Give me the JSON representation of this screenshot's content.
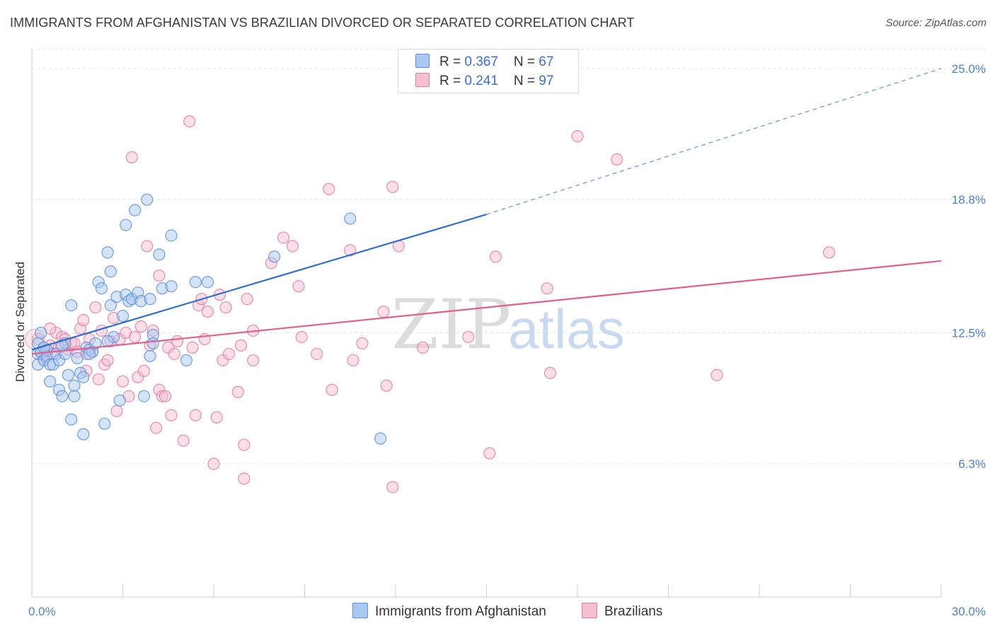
{
  "header": {
    "title": "IMMIGRANTS FROM AFGHANISTAN VS BRAZILIAN DIVORCED OR SEPARATED CORRELATION CHART",
    "source": "Source: ZipAtlas.com"
  },
  "legend": {
    "rows": [
      {
        "r_label": "R = ",
        "r_value": "0.367",
        "n_label": "N = ",
        "n_value": "67"
      },
      {
        "r_label": "R = ",
        "r_value": "0.241",
        "n_label": "N = ",
        "n_value": "97"
      }
    ]
  },
  "watermark": {
    "zip": "ZIP",
    "atlas": "atlas"
  },
  "colors": {
    "blue_fill": "#a9c8f2",
    "blue_stroke": "#5b8fd8",
    "blue_line": "#2f6fcc",
    "pink_fill": "#f6bfd2",
    "pink_stroke": "#e07aa0",
    "pink_line": "#e0608e",
    "axis_text": "#4a7fd4",
    "grid": "#e3e3e3"
  },
  "chart_data": {
    "type": "scatter",
    "title": "IMMIGRANTS FROM AFGHANISTAN VS BRAZILIAN DIVORCED OR SEPARATED CORRELATION CHART",
    "xlabel": "",
    "ylabel": "Divorced or Separated",
    "xlim": [
      0,
      30
    ],
    "ylim": [
      0,
      25.9
    ],
    "x_tick_labels": [
      {
        "value": 0,
        "label": "0.0%"
      },
      {
        "value": 30,
        "label": "30.0%"
      }
    ],
    "y_ticks": [
      {
        "value": 6.3,
        "label": "6.3%"
      },
      {
        "value": 12.5,
        "label": "12.5%"
      },
      {
        "value": 18.8,
        "label": "18.8%"
      },
      {
        "value": 25.0,
        "label": "25.0%"
      }
    ],
    "grid": true,
    "legend_position": "top-center",
    "series": [
      {
        "name": "Immigrants from Afghanistan",
        "color": "#5b8fd8",
        "trend": {
          "x": [
            0,
            15
          ],
          "y": [
            11.7,
            18.1
          ],
          "dashed_to": [
            30,
            25.0
          ]
        },
        "points": [
          [
            0.2,
            12.0
          ],
          [
            0.2,
            11.5
          ],
          [
            0.2,
            11.0
          ],
          [
            0.3,
            11.6
          ],
          [
            0.3,
            12.5
          ],
          [
            0.4,
            11.2
          ],
          [
            0.5,
            11.7
          ],
          [
            0.5,
            11.4
          ],
          [
            0.6,
            11.0
          ],
          [
            0.6,
            10.2
          ],
          [
            0.7,
            11.0
          ],
          [
            0.8,
            11.5
          ],
          [
            0.9,
            9.8
          ],
          [
            0.9,
            11.2
          ],
          [
            1.0,
            9.5
          ],
          [
            1.1,
            11.5
          ],
          [
            1.1,
            12.0
          ],
          [
            1.2,
            10.5
          ],
          [
            1.3,
            13.8
          ],
          [
            1.3,
            8.4
          ],
          [
            1.4,
            10.0
          ],
          [
            1.4,
            9.5
          ],
          [
            1.5,
            11.3
          ],
          [
            1.6,
            10.6
          ],
          [
            1.7,
            10.4
          ],
          [
            1.7,
            7.7
          ],
          [
            1.8,
            11.8
          ],
          [
            1.9,
            11.7
          ],
          [
            2.0,
            11.6
          ],
          [
            2.1,
            12.0
          ],
          [
            2.2,
            14.9
          ],
          [
            2.3,
            14.6
          ],
          [
            2.4,
            8.2
          ],
          [
            2.5,
            16.3
          ],
          [
            2.6,
            15.4
          ],
          [
            2.6,
            13.8
          ],
          [
            2.7,
            12.3
          ],
          [
            2.8,
            14.2
          ],
          [
            2.9,
            9.3
          ],
          [
            3.0,
            13.3
          ],
          [
            3.1,
            17.6
          ],
          [
            3.1,
            14.3
          ],
          [
            3.2,
            14.0
          ],
          [
            3.3,
            14.1
          ],
          [
            3.4,
            18.3
          ],
          [
            3.5,
            14.4
          ],
          [
            3.6,
            14.0
          ],
          [
            3.7,
            9.5
          ],
          [
            3.8,
            18.8
          ],
          [
            3.9,
            11.4
          ],
          [
            4.0,
            12.4
          ],
          [
            4.2,
            16.2
          ],
          [
            4.3,
            14.6
          ],
          [
            4.6,
            17.1
          ],
          [
            4.6,
            14.7
          ],
          [
            5.1,
            11.2
          ],
          [
            5.4,
            14.9
          ],
          [
            5.8,
            14.9
          ],
          [
            8.0,
            16.1
          ],
          [
            10.5,
            17.9
          ],
          [
            11.5,
            7.5
          ],
          [
            3.9,
            14.1
          ],
          [
            2.5,
            12.1
          ],
          [
            1.0,
            11.9
          ],
          [
            0.4,
            11.8
          ],
          [
            1.9,
            11.5
          ],
          [
            4.0,
            12.0
          ]
        ]
      },
      {
        "name": "Brazilians",
        "color": "#e07aa0",
        "trend": {
          "x": [
            0,
            30
          ],
          "y": [
            11.5,
            15.9
          ]
        },
        "points": [
          [
            0.2,
            12.2
          ],
          [
            0.3,
            11.5
          ],
          [
            0.4,
            11.3
          ],
          [
            0.5,
            11.6
          ],
          [
            0.6,
            11.9
          ],
          [
            0.7,
            11.5
          ],
          [
            0.8,
            12.5
          ],
          [
            0.9,
            11.8
          ],
          [
            1.0,
            12.3
          ],
          [
            1.1,
            12.2
          ],
          [
            1.2,
            11.7
          ],
          [
            1.3,
            12.0
          ],
          [
            1.4,
            12.0
          ],
          [
            1.5,
            11.6
          ],
          [
            1.6,
            12.7
          ],
          [
            1.7,
            13.1
          ],
          [
            1.8,
            11.5
          ],
          [
            1.8,
            10.7
          ],
          [
            1.9,
            12.2
          ],
          [
            2.0,
            11.6
          ],
          [
            2.1,
            13.7
          ],
          [
            2.2,
            10.3
          ],
          [
            2.3,
            12.6
          ],
          [
            2.4,
            11.0
          ],
          [
            2.5,
            11.2
          ],
          [
            2.6,
            12.1
          ],
          [
            2.7,
            13.2
          ],
          [
            2.8,
            8.8
          ],
          [
            2.9,
            12.2
          ],
          [
            3.0,
            10.2
          ],
          [
            3.1,
            12.5
          ],
          [
            3.2,
            9.5
          ],
          [
            3.3,
            20.8
          ],
          [
            3.4,
            12.3
          ],
          [
            3.5,
            10.4
          ],
          [
            3.6,
            12.8
          ],
          [
            3.7,
            10.7
          ],
          [
            3.8,
            16.6
          ],
          [
            3.9,
            11.9
          ],
          [
            4.0,
            12.6
          ],
          [
            4.1,
            8.0
          ],
          [
            4.2,
            9.8
          ],
          [
            4.2,
            15.2
          ],
          [
            4.3,
            9.5
          ],
          [
            4.4,
            9.5
          ],
          [
            4.5,
            11.8
          ],
          [
            4.6,
            8.6
          ],
          [
            4.7,
            11.5
          ],
          [
            4.8,
            12.1
          ],
          [
            5.0,
            7.4
          ],
          [
            5.2,
            22.5
          ],
          [
            5.3,
            11.8
          ],
          [
            5.4,
            8.6
          ],
          [
            5.5,
            13.8
          ],
          [
            5.6,
            14.1
          ],
          [
            5.7,
            12.2
          ],
          [
            5.8,
            13.5
          ],
          [
            6.0,
            6.3
          ],
          [
            6.1,
            8.5
          ],
          [
            6.2,
            14.3
          ],
          [
            6.3,
            11.2
          ],
          [
            6.4,
            13.7
          ],
          [
            6.5,
            11.5
          ],
          [
            6.8,
            9.7
          ],
          [
            6.9,
            11.9
          ],
          [
            7.0,
            7.2
          ],
          [
            7.0,
            5.6
          ],
          [
            7.1,
            14.1
          ],
          [
            7.3,
            11.2
          ],
          [
            7.3,
            12.6
          ],
          [
            7.9,
            15.8
          ],
          [
            8.3,
            17.0
          ],
          [
            8.6,
            16.6
          ],
          [
            8.8,
            14.7
          ],
          [
            8.9,
            12.3
          ],
          [
            9.4,
            11.5
          ],
          [
            9.8,
            19.3
          ],
          [
            9.9,
            9.8
          ],
          [
            10.5,
            16.4
          ],
          [
            10.6,
            11.2
          ],
          [
            10.9,
            12.0
          ],
          [
            11.6,
            13.5
          ],
          [
            11.7,
            10.0
          ],
          [
            11.9,
            5.2
          ],
          [
            11.9,
            19.4
          ],
          [
            12.1,
            16.6
          ],
          [
            12.9,
            11.8
          ],
          [
            14.4,
            12.3
          ],
          [
            15.1,
            6.8
          ],
          [
            15.3,
            16.1
          ],
          [
            17.0,
            14.6
          ],
          [
            17.1,
            10.6
          ],
          [
            18.0,
            21.8
          ],
          [
            19.3,
            20.7
          ],
          [
            22.6,
            10.5
          ],
          [
            26.3,
            16.3
          ],
          [
            0.6,
            12.7
          ]
        ]
      }
    ]
  },
  "bottom_legend": [
    {
      "label": "Immigrants from Afghanistan"
    },
    {
      "label": "Brazilians"
    }
  ]
}
